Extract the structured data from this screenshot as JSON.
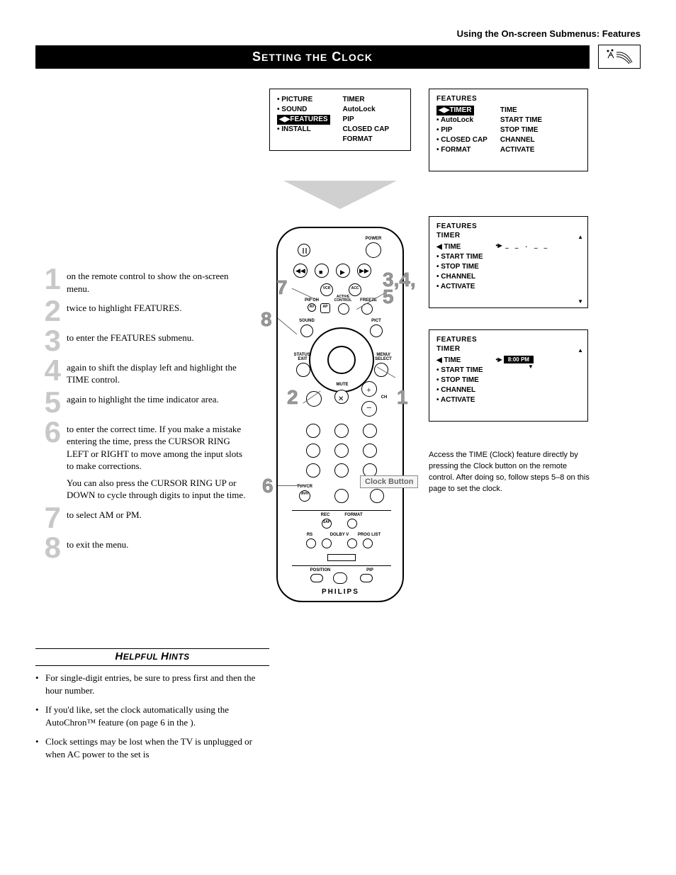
{
  "breadcrumb": "Using the On-screen Submenus: Features",
  "title": {
    "pre": "S",
    "mid1": "ETTING THE",
    "mid2": " C",
    "post": "LOCK"
  },
  "steps": [
    {
      "n": "1",
      "text": "on the remote control to show the on-screen menu."
    },
    {
      "n": "2",
      "text": "twice to highlight FEATURES."
    },
    {
      "n": "3",
      "text": "to enter the FEATURES submenu."
    },
    {
      "n": "4",
      "text": "again to shift the display left and highlight the TIME control."
    },
    {
      "n": "5",
      "text": "again to highlight the time indicator area."
    },
    {
      "n": "6",
      "text": "to enter the correct time. If you make a mistake entering the time, press the CURSOR RING LEFT or RIGHT to move among the input slots to make corrections.",
      "note": "You can also press the CURSOR RING UP or DOWN to cycle through digits to input the time."
    },
    {
      "n": "7",
      "text": "to select AM or PM."
    },
    {
      "n": "8",
      "text": "to exit the menu."
    }
  ],
  "menu1": {
    "left": [
      "PICTURE",
      "SOUND",
      "FEATURES",
      "INSTALL"
    ],
    "selected": "FEATURES",
    "right": [
      "TIMER",
      "AutoLock",
      "PIP",
      "CLOSED CAP",
      "FORMAT"
    ]
  },
  "menu2": {
    "hdr": "FEATURES",
    "left": [
      "TIMER",
      "AutoLock",
      "PIP",
      "CLOSED CAP",
      "FORMAT",
      ""
    ],
    "selected": "TIMER",
    "right": [
      "TIME",
      "START TIME",
      "STOP TIME",
      "CHANNEL",
      "ACTIVATE"
    ]
  },
  "menu3": {
    "hdr1": "FEATURES",
    "hdr2": "TIMER",
    "left": [
      "TIME",
      "START TIME",
      "STOP TIME",
      "CHANNEL",
      "ACTIVATE",
      ""
    ],
    "selected": "TIME",
    "value": "_  _ . _  _"
  },
  "menu4": {
    "hdr1": "FEATURES",
    "hdr2": "TIMER",
    "left": [
      "TIME",
      "START TIME",
      "STOP TIME",
      "CHANNEL",
      "ACTIVATE",
      ""
    ],
    "selected": "TIME",
    "value": "8:00 PM"
  },
  "side_note": "Access the TIME (Clock) feature directly by  pressing the Clock button on the remote control. After doing so, follow steps 5–8 on this page to set the clock.",
  "clock_button_label": "Clock Button",
  "brand": "PHILIPS",
  "callouts": {
    "c1": "1",
    "c2": "2",
    "c345": "3,4,\n5",
    "c6": "6",
    "c7": "7",
    "c8": "8"
  },
  "remote_labels": {
    "power": "POWER",
    "vcr": "VCR",
    "acc": "ACC",
    "pipch": "PIP CH",
    "active": "ACTIVE CONTROL",
    "freeze": "FREEZE",
    "av": "AV",
    "ap": "AP",
    "sound": "SOUND",
    "pict": "PICT",
    "status": "STATUS/ EXIT",
    "menu": "MENU/ SELECT",
    "mute": "MUTE",
    "ch": "CH",
    "tvvcr": "TV/VCR",
    "avh": "AVH",
    "rec": "REC",
    "format": "FORMAT",
    "sap": "SAP",
    "rs": "RS",
    "dolby": "DOLBY V",
    "prog": "PROG LIST",
    "position": "POSITION",
    "pip": "PIP"
  },
  "hints": {
    "title_pre": "H",
    "title_mid": "ELPFUL ",
    "title_pre2": "H",
    "title_post": "INTS",
    "items": [
      "For single-digit entries, be sure to press first and then the hour number.",
      "If you'd like, set the clock automatically using the AutoChron™ feature (on page 6 in the                                       ).",
      "Clock settings may be lost when the TV is unplugged or when AC power to the set is"
    ]
  },
  "colors": {
    "step_num": "#c8c8c8",
    "callout": "#999999"
  }
}
